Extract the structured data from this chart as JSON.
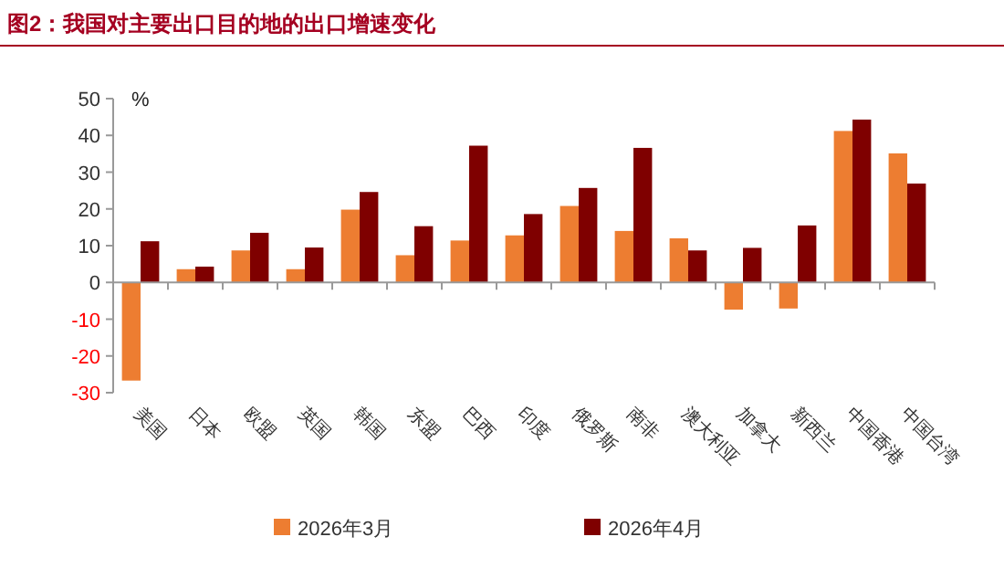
{
  "chart_data": {
    "type": "bar",
    "title": "图2：我国对主要出口目的地的出口增速变化",
    "ylabel": "%",
    "categories": [
      "美国",
      "日本",
      "欧盟",
      "英国",
      "韩国",
      "东盟",
      "巴西",
      "印度",
      "俄罗斯",
      "南非",
      "澳大利亚",
      "加拿大",
      "新西兰",
      "中国香港",
      "中国台湾"
    ],
    "series": [
      {
        "name": "2026年3月",
        "color": "#ed7d31",
        "values": [
          -26.7,
          3.6,
          8.7,
          3.6,
          19.8,
          7.4,
          11.4,
          12.8,
          20.8,
          14.0,
          12.0,
          -7.4,
          -7.1,
          41.2,
          35.1
        ]
      },
      {
        "name": "2026年4月",
        "color": "#7f0000",
        "values": [
          11.2,
          4.3,
          13.5,
          9.5,
          24.6,
          15.3,
          37.2,
          18.6,
          25.7,
          36.6,
          8.7,
          9.4,
          15.5,
          44.3,
          26.9
        ]
      }
    ],
    "ylim": [
      -30,
      50
    ],
    "yticks": [
      -30,
      -20,
      -10,
      0,
      10,
      20,
      30,
      40,
      50
    ],
    "legend": "bottom"
  }
}
